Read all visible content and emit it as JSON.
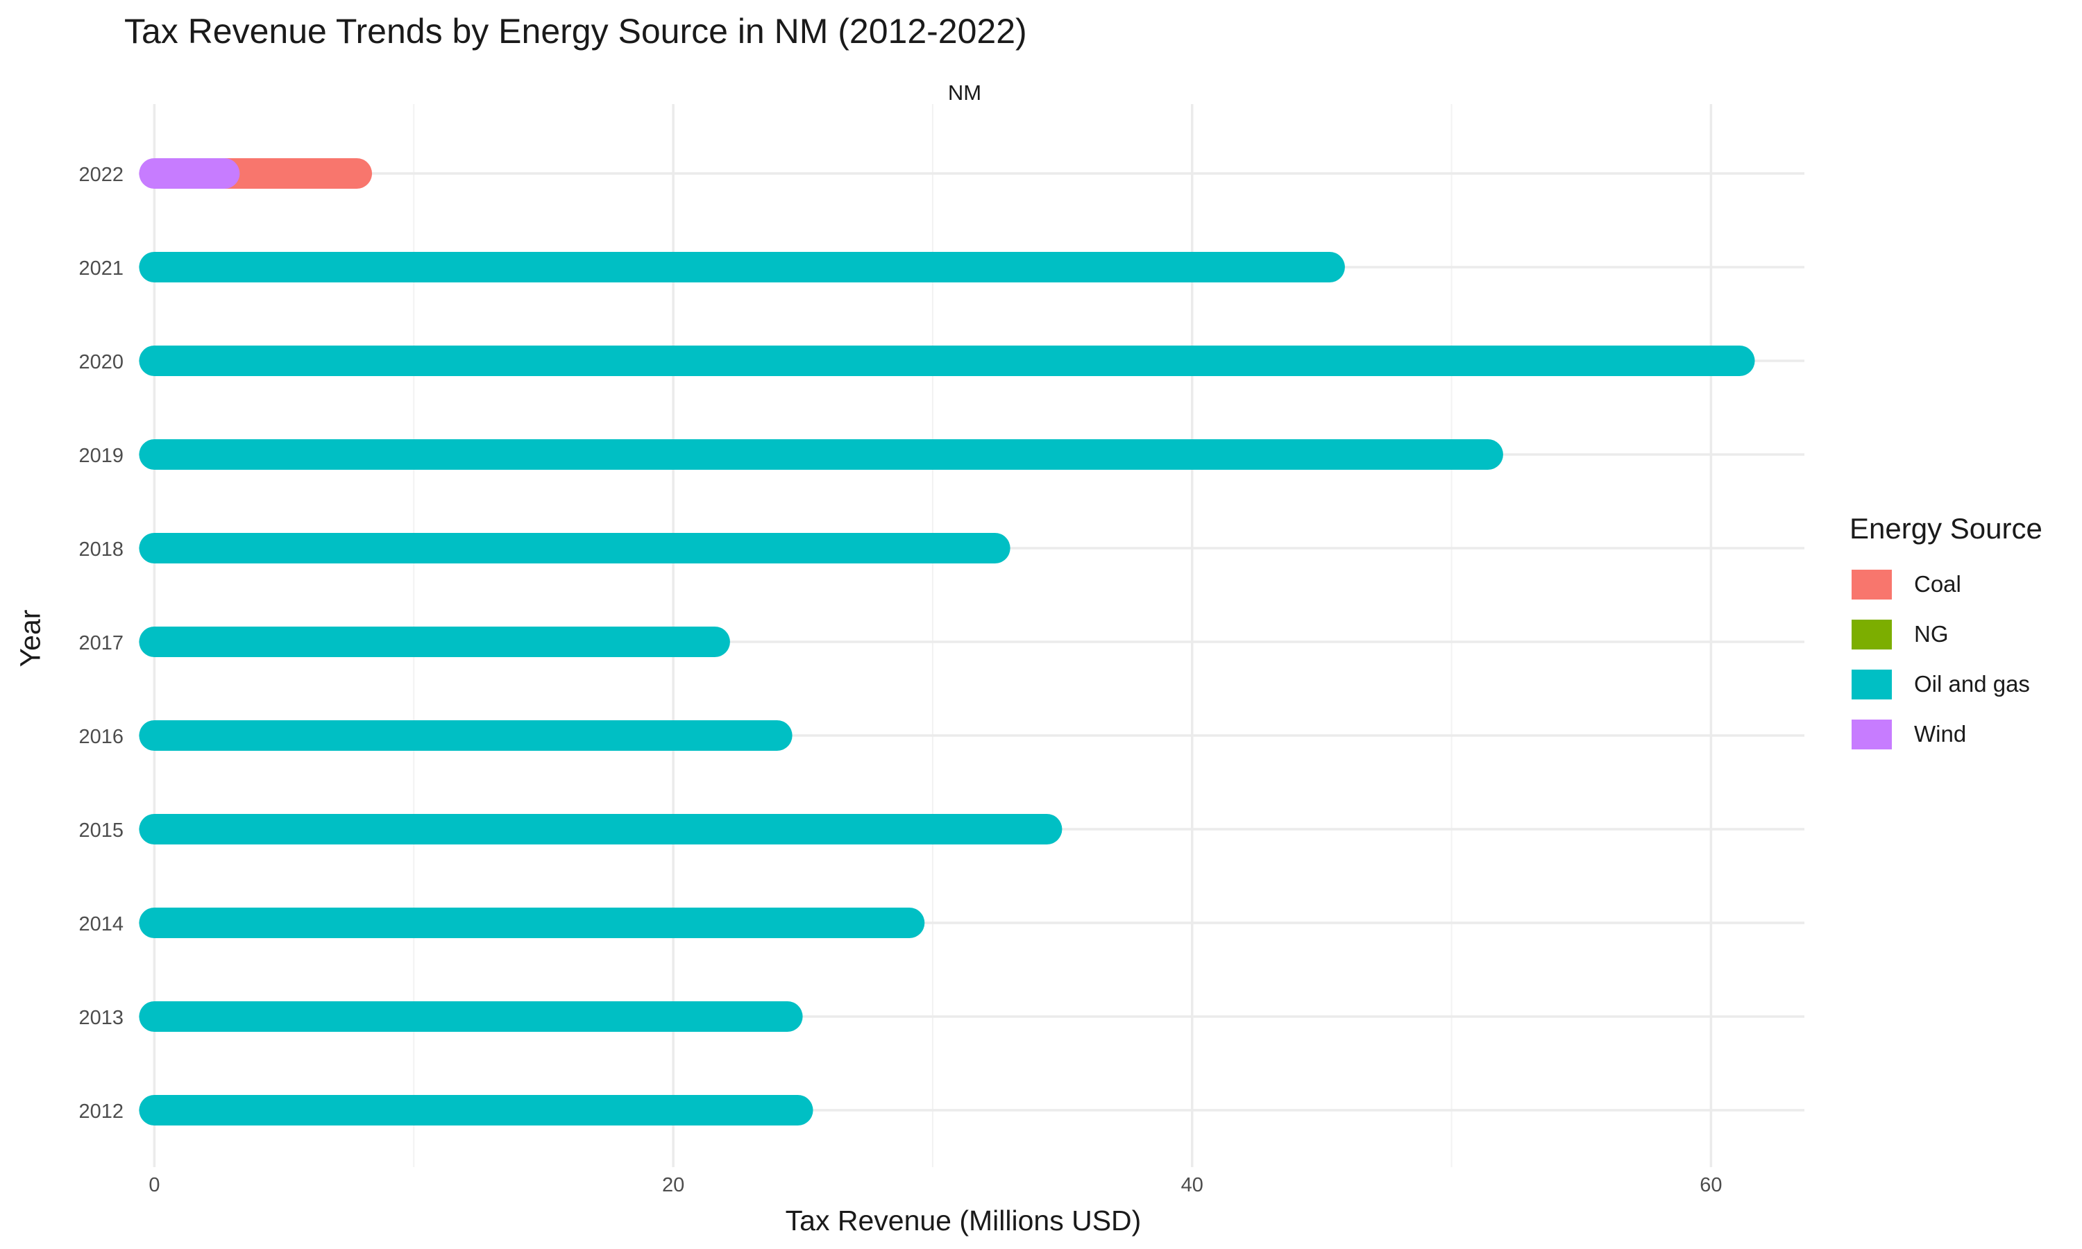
{
  "chart_data": {
    "type": "bar",
    "title": "Tax Revenue Trends by Energy Source in NM (2012-2022)",
    "facet": "NM",
    "xlabel": "Tax Revenue (Millions USD)",
    "ylabel": "Year",
    "xlim": [
      -0.6,
      63.6
    ],
    "xticks": [
      0,
      20,
      40,
      60
    ],
    "categories": [
      "2012",
      "2013",
      "2014",
      "2015",
      "2016",
      "2017",
      "2018",
      "2019",
      "2020",
      "2021",
      "2022"
    ],
    "series": [
      {
        "name": "Coal",
        "color": "#F8766D",
        "values": [
          0,
          0,
          0,
          0,
          0,
          0,
          0,
          0,
          0,
          0,
          5.1
        ]
      },
      {
        "name": "NG",
        "color": "#7CAE00",
        "values": [
          0,
          0,
          0,
          0,
          0,
          0,
          0,
          0,
          0,
          0,
          0
        ]
      },
      {
        "name": "Oil and gas",
        "color": "#00BFC4",
        "values": [
          24.8,
          24.4,
          29.1,
          34.4,
          24.0,
          21.6,
          32.4,
          51.4,
          61.1,
          45.3,
          0
        ]
      },
      {
        "name": "Wind",
        "color": "#C77CFF",
        "values": [
          0,
          0,
          0,
          0,
          0,
          0,
          0,
          0,
          0,
          0,
          2.7
        ]
      }
    ],
    "legend": {
      "title": "Energy Source",
      "position": "right"
    },
    "grid": true
  }
}
